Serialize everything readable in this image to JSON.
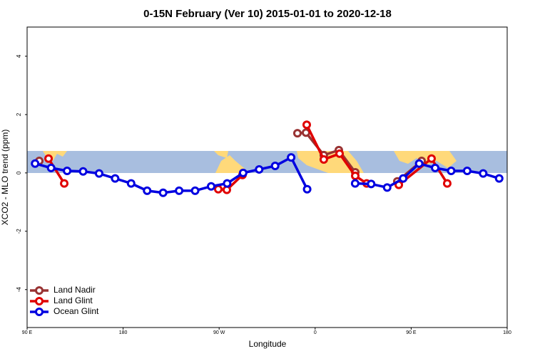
{
  "chart_data": {
    "type": "line",
    "title": "0-15N February (Ver 10)   2015-01-01 to 2020-12-18",
    "x_label": "Longitude",
    "y_label": "XCO2 - MLO trend (ppm)",
    "xlim": [
      90,
      540
    ],
    "ylim": [
      -5.3,
      5
    ],
    "xticks": [
      {
        "value": 90,
        "label": "90 E"
      },
      {
        "value": 180,
        "label": "180"
      },
      {
        "value": 270,
        "label": "90 W"
      },
      {
        "value": 360,
        "label": "0"
      },
      {
        "value": 450,
        "label": "90 E"
      },
      {
        "value": 540,
        "label": "180"
      }
    ],
    "yticks": [
      -4,
      -2,
      0,
      2,
      4
    ],
    "legend": "bottom-left",
    "series": [
      {
        "name": "Land Nadir",
        "color": "#993333",
        "x": [
          101.4,
          null,
          343.4,
          351.4,
          368.1,
          382.2,
          397.6,
          null,
          437.0,
          459.8
        ],
        "values": [
          0.41,
          null,
          1.36,
          1.38,
          0.61,
          0.78,
          0.02,
          null,
          -0.29,
          0.41
        ]
      },
      {
        "name": "Land Glint",
        "color": "#e00000",
        "x": [
          110.1,
          124.8,
          null,
          269.2,
          277.2,
          291.9,
          null,
          352.1,
          368.1,
          382.9,
          397.6,
          408.3,
          null,
          438.4,
          469.1,
          483.8
        ],
        "values": [
          0.49,
          -0.36,
          null,
          -0.56,
          -0.58,
          -0.07,
          null,
          1.65,
          0.46,
          0.66,
          -0.1,
          -0.36,
          null,
          -0.41,
          0.49,
          -0.36
        ]
      },
      {
        "name": "Ocean Glint",
        "color": "#0000e0",
        "x": [
          97.5,
          112.5,
          127.5,
          142.5,
          157.5,
          172.5,
          187.5,
          202.5,
          217.5,
          232.5,
          247.5,
          262.5,
          277.5,
          292.5,
          307.5,
          322.5,
          337.5,
          352.5,
          null,
          397.5,
          412.5,
          427.5,
          442.5,
          457.5,
          472.5,
          487.5,
          502.5,
          517.5,
          532.5
        ],
        "values": [
          0.32,
          0.17,
          0.07,
          0.05,
          -0.02,
          -0.19,
          -0.36,
          -0.61,
          -0.68,
          -0.61,
          -0.61,
          -0.46,
          -0.36,
          0.0,
          0.12,
          0.24,
          0.53,
          -0.56,
          null,
          -0.36,
          -0.38,
          -0.5,
          -0.19,
          0.32,
          0.17,
          0.07,
          0.07,
          -0.02,
          -0.19
        ]
      }
    ]
  }
}
